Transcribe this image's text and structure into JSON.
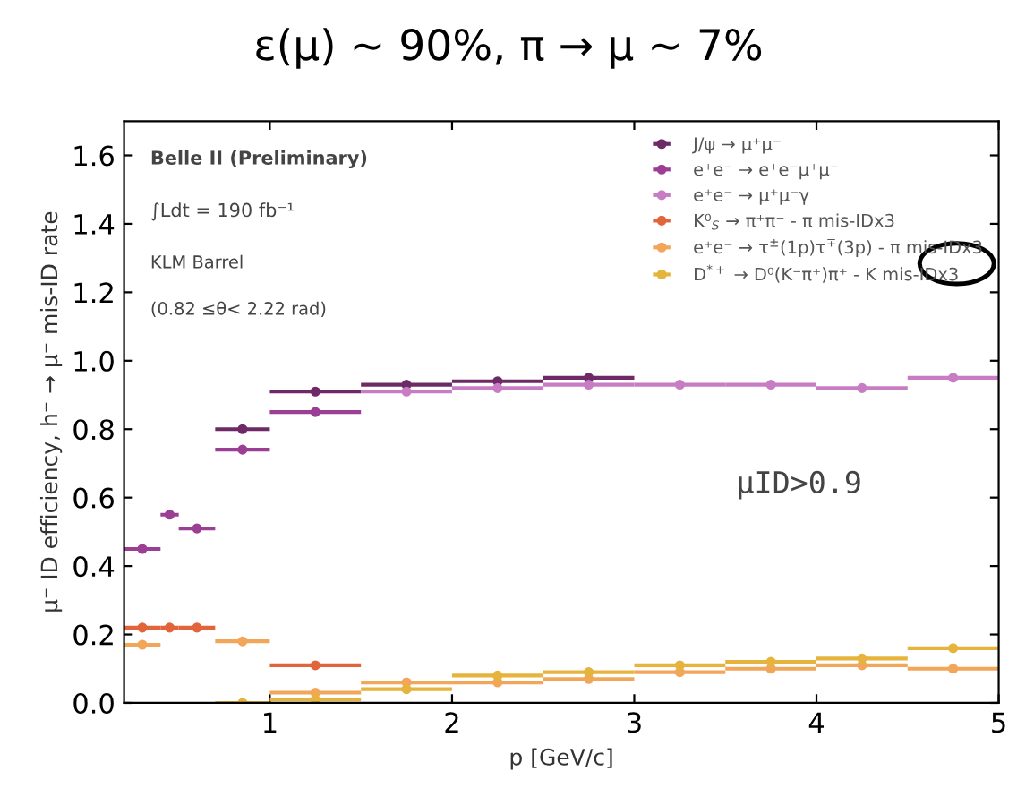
{
  "chart_data": {
    "type": "scatter",
    "title": "ε(μ) ∼ 90%, π → μ ∼ 7%",
    "xlabel": "p [GeV/c]",
    "ylabel": "μ⁻ ID efficiency, h⁻ → μ⁻ mis-ID rate",
    "marker": "circle",
    "legend": "top right",
    "grid": false,
    "xlim": [
      0.2,
      5
    ],
    "xticks": [
      1,
      2,
      3,
      4,
      5
    ],
    "ylim": [
      0,
      1.7
    ],
    "yticks": [
      {
        "value": 0,
        "label": "0.0"
      },
      {
        "value": 0.2,
        "label": "0.2"
      },
      {
        "value": 0.4,
        "label": "0.4"
      },
      {
        "value": 0.6,
        "label": "0.6"
      },
      {
        "value": 0.8,
        "label": "0.8"
      },
      {
        "value": 1.0,
        "label": "1.0"
      },
      {
        "value": 1.2,
        "label": "1.2"
      },
      {
        "value": 1.4,
        "label": "1.4"
      },
      {
        "value": 1.6,
        "label": "1.6"
      }
    ],
    "series": [
      {
        "name": "J/ψ → μ⁺μ⁻",
        "color": "#6e2a66",
        "x": [
          0.85,
          1.25,
          1.75,
          2.25,
          2.75
        ],
        "values": [
          0.8,
          0.91,
          0.93,
          0.94,
          0.95
        ],
        "xerrors": [
          0.15,
          0.25,
          0.25,
          0.25,
          0.25
        ]
      },
      {
        "name": "e⁺e⁻ → e⁺e⁻μ⁺μ⁻",
        "color": "#9a3f94",
        "x": [
          0.3,
          0.45,
          0.6,
          0.85,
          1.25
        ],
        "values": [
          0.45,
          0.55,
          0.51,
          0.74,
          0.85
        ],
        "xerrors": [
          0.1,
          0.05,
          0.1,
          0.15,
          0.25
        ]
      },
      {
        "name": "e⁺e⁻ → μ⁺μ⁻γ",
        "color": "#c77cc4",
        "x": [
          1.75,
          2.25,
          2.75,
          3.25,
          3.75,
          4.25,
          4.75
        ],
        "values": [
          0.91,
          0.92,
          0.93,
          0.93,
          0.93,
          0.92,
          0.95
        ],
        "xerrors": [
          0.25,
          0.25,
          0.25,
          0.25,
          0.25,
          0.25,
          0.25
        ]
      },
      {
        "name": "K⁰$_{S}$ → π⁺π⁻ - π mis-IDx3",
        "color": "#e2643a",
        "x": [
          0.3,
          0.45,
          0.6,
          1.25
        ],
        "values": [
          0.22,
          0.22,
          0.22,
          0.11
        ],
        "xerrors": [
          0.1,
          0.05,
          0.1,
          0.25
        ]
      },
      {
        "name": "e⁺e⁻ → τ$^{±}$(1p)τ$^{∓}$(3p) - π mis-IDx3",
        "color": "#f2a65a",
        "x": [
          0.3,
          0.85,
          1.25,
          1.75,
          2.25,
          2.75,
          3.25,
          3.75,
          4.25,
          4.75
        ],
        "values": [
          0.17,
          0.18,
          0.03,
          0.06,
          0.06,
          0.07,
          0.09,
          0.1,
          0.11,
          0.1
        ],
        "xerrors": [
          0.1,
          0.15,
          0.25,
          0.25,
          0.25,
          0.25,
          0.25,
          0.25,
          0.25,
          0.25
        ]
      },
      {
        "name": "D$^{*+}$ → D⁰(K⁻π⁺)π⁺ - K mis-IDx3",
        "color": "#e6b43c",
        "x": [
          0.85,
          1.25,
          1.75,
          2.25,
          2.75,
          3.25,
          3.75,
          4.25,
          4.75
        ],
        "values": [
          0.0,
          0.01,
          0.04,
          0.08,
          0.09,
          0.11,
          0.12,
          0.13,
          0.16
        ],
        "xerrors": [
          0.15,
          0.25,
          0.25,
          0.25,
          0.25,
          0.25,
          0.25,
          0.25,
          0.25
        ]
      }
    ],
    "annotations": [
      "Belle II (Preliminary)",
      "∫Ldt = 190 fb⁻¹",
      "KLM Barrel",
      "(0.82 ≤θ< 2.22 rad)",
      "μID>0.9"
    ]
  }
}
